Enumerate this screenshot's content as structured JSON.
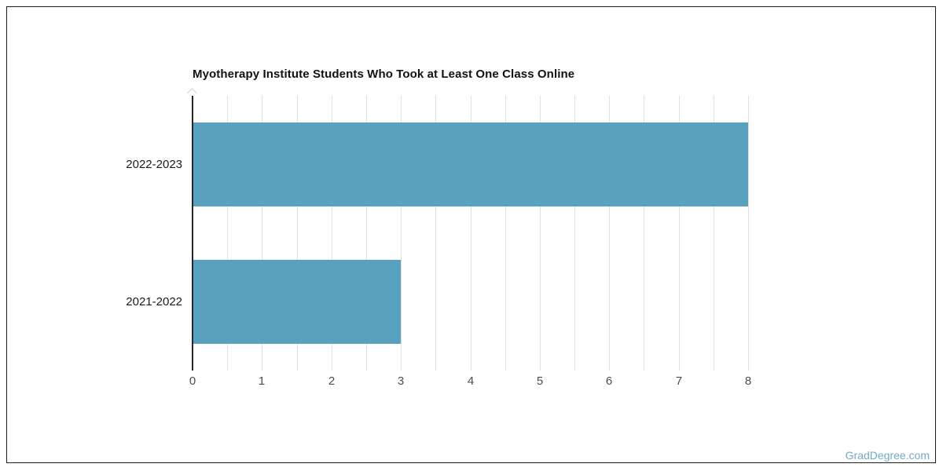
{
  "chart_data": {
    "type": "bar",
    "orientation": "horizontal",
    "title": "Myotherapy Institute Students Who Took at Least One Class Online",
    "categories": [
      "2022-2023",
      "2021-2022"
    ],
    "values": [
      8,
      3
    ],
    "xlabel": "",
    "ylabel": "",
    "xlim": [
      0,
      8
    ],
    "x_ticks": [
      "0",
      "1",
      "2",
      "3",
      "4",
      "5",
      "6",
      "7",
      "8"
    ],
    "minor_grid_step": 0.5,
    "grid": "vertical minor gridlines on",
    "legend_position": "none",
    "bar_color": "#58a1bf",
    "axis_color": "#262626",
    "grid_color": "#e2e2e2",
    "title_color": "#111111",
    "tick_label_color": "#4c4c4c",
    "category_label_color": "#1b1b1b"
  },
  "watermark": {
    "text": "GradDegree.com",
    "color": "#73aac6"
  }
}
